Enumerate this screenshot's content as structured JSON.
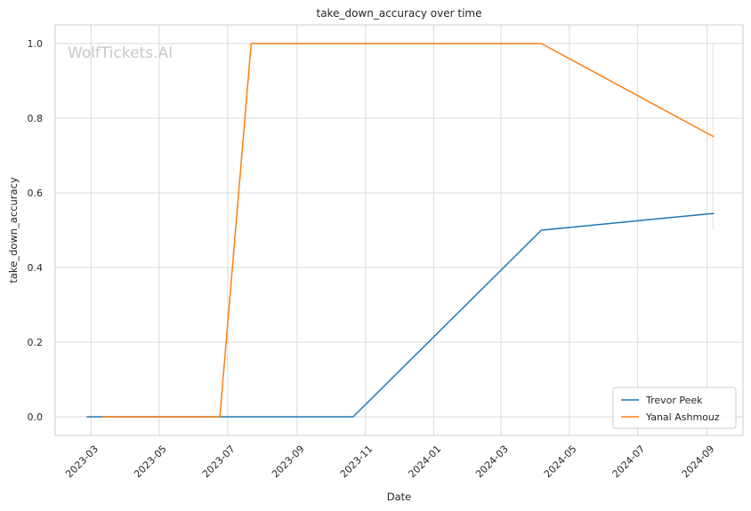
{
  "chart_data": {
    "type": "line",
    "title": "take_down_accuracy over time",
    "xlabel": "Date",
    "ylabel": "take_down_accuracy",
    "watermark": "WolfTickets.AI",
    "x_type": "date",
    "xlim": [
      "2023-01-28",
      "2024-10-03"
    ],
    "ylim": [
      -0.05,
      1.05
    ],
    "x_ticks": [
      "2023-03-01",
      "2023-05-01",
      "2023-07-01",
      "2023-09-01",
      "2023-11-01",
      "2024-01-01",
      "2024-03-01",
      "2024-05-01",
      "2024-07-01",
      "2024-09-01"
    ],
    "x_tick_labels": [
      "2023-03",
      "2023-05",
      "2023-07",
      "2023-09",
      "2023-11",
      "2024-01",
      "2024-03",
      "2024-05",
      "2024-07",
      "2024-09"
    ],
    "y_ticks": [
      0.0,
      0.2,
      0.4,
      0.6,
      0.8,
      1.0
    ],
    "y_tick_labels": [
      "0.0",
      "0.2",
      "0.4",
      "0.6",
      "0.8",
      "1.0"
    ],
    "grid": true,
    "legend_position": "bottom-right",
    "series": [
      {
        "name": "Trevor Peek",
        "color": "#1f77b4",
        "points": [
          {
            "x": "2023-02-25",
            "y": 0.0
          },
          {
            "x": "2023-10-21",
            "y": 0.0
          },
          {
            "x": "2024-04-06",
            "y": 0.5
          },
          {
            "x": "2024-09-07",
            "y": 0.545
          }
        ]
      },
      {
        "name": "Yanal Ashmouz",
        "color": "#ff7f0e",
        "points": [
          {
            "x": "2023-03-11",
            "y": 0.0
          },
          {
            "x": "2023-06-24",
            "y": 0.0
          },
          {
            "x": "2023-07-22",
            "y": 1.0
          },
          {
            "x": "2024-04-06",
            "y": 1.0
          },
          {
            "x": "2024-09-07",
            "y": 0.75
          }
        ]
      }
    ]
  }
}
